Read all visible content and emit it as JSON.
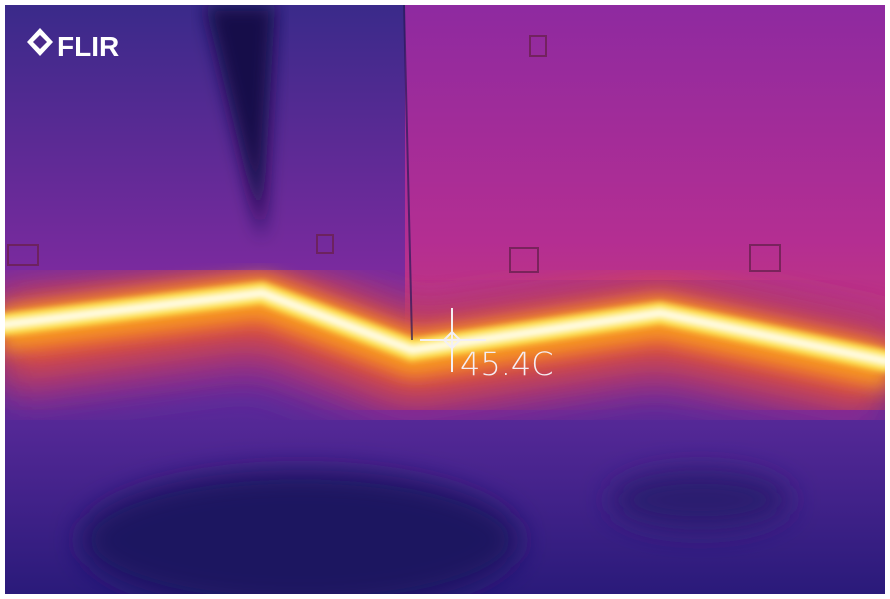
{
  "logo": {
    "text": "FLIR"
  },
  "measurement": {
    "reading": "45.4C"
  }
}
